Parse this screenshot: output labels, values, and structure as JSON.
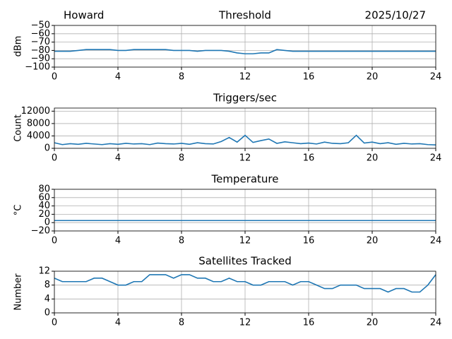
{
  "header": {
    "left": "Howard",
    "right": "2025/10/27"
  },
  "chart_data": [
    {
      "type": "line",
      "title": "Threshold",
      "y_label": "dBm",
      "xlim": [
        0,
        24
      ],
      "xticks": [
        0,
        4,
        8,
        12,
        16,
        20,
        24
      ],
      "ylim": [
        -100,
        -50
      ],
      "yticks": [
        {
          "value": -100,
          "label": "−100"
        },
        {
          "value": -90,
          "label": "−90"
        },
        {
          "value": -80,
          "label": "−80"
        },
        {
          "value": -70,
          "label": "−70"
        },
        {
          "value": -60,
          "label": "−60"
        },
        {
          "value": -50,
          "label": "−50"
        }
      ],
      "grid": true,
      "x": [
        0,
        0.5,
        1,
        1.5,
        2,
        2.5,
        3,
        3.5,
        4,
        4.5,
        5,
        5.5,
        6,
        6.5,
        7,
        7.5,
        8,
        8.5,
        9,
        9.5,
        10,
        10.5,
        11,
        11.5,
        12,
        12.5,
        13,
        13.5,
        14,
        14.5,
        15,
        15.5,
        16,
        16.5,
        17,
        17.5,
        18,
        18.5,
        19,
        19.5,
        20,
        20.5,
        21,
        21.5,
        22,
        22.5,
        23,
        23.5,
        24
      ],
      "series": [
        {
          "color": "#1f77b4",
          "values": [
            -81,
            -81,
            -81,
            -80,
            -79,
            -79,
            -79,
            -79,
            -80,
            -80,
            -79,
            -79,
            -79,
            -79,
            -79,
            -80,
            -80,
            -80,
            -81,
            -80,
            -80,
            -80,
            -81,
            -83,
            -84,
            -84,
            -83,
            -83,
            -79,
            -80,
            -81,
            -81,
            -81,
            -81,
            -81,
            -81,
            -81,
            -81,
            -81,
            -81,
            -81,
            -81,
            -81,
            -81,
            -81,
            -81,
            -81,
            -81,
            -81
          ]
        }
      ]
    },
    {
      "type": "line",
      "title": "Triggers/sec",
      "y_label": "Count",
      "xlim": [
        0,
        24
      ],
      "xticks": [
        0,
        4,
        8,
        12,
        16,
        20,
        24
      ],
      "ylim": [
        0,
        13000
      ],
      "yticks": [
        0,
        4000,
        8000,
        12000
      ],
      "grid": true,
      "x": [
        0,
        0.5,
        1,
        1.5,
        2,
        2.5,
        3,
        3.5,
        4,
        4.5,
        5,
        5.5,
        6,
        6.5,
        7,
        7.5,
        8,
        8.5,
        9,
        9.5,
        10,
        10.5,
        11,
        11.5,
        12,
        12.5,
        13,
        13.5,
        14,
        14.5,
        15,
        15.5,
        16,
        16.5,
        17,
        17.5,
        18,
        18.5,
        19,
        19.5,
        20,
        20.5,
        21,
        21.5,
        22,
        22.5,
        23,
        23.5,
        24
      ],
      "series": [
        {
          "color": "#1f77b4",
          "values": [
            1800,
            1200,
            1500,
            1300,
            1600,
            1400,
            1200,
            1500,
            1300,
            1600,
            1400,
            1500,
            1200,
            1700,
            1500,
            1400,
            1600,
            1300,
            1800,
            1500,
            1400,
            2200,
            3500,
            2000,
            4200,
            1900,
            2500,
            3000,
            1600,
            2100,
            1800,
            1500,
            1700,
            1400,
            2000,
            1600,
            1500,
            1800,
            4200,
            1700,
            2000,
            1500,
            1800,
            1300,
            1600,
            1400,
            1500,
            1200,
            1100
          ]
        }
      ]
    },
    {
      "type": "line",
      "title": "Temperature",
      "y_label": "°C",
      "xlim": [
        0,
        24
      ],
      "xticks": [
        0,
        4,
        8,
        12,
        16,
        20,
        24
      ],
      "ylim": [
        -20,
        80
      ],
      "yticks": [
        {
          "value": -20,
          "label": "−20"
        },
        0,
        20,
        40,
        60,
        80
      ],
      "grid": true,
      "x": [
        0,
        0.5,
        1,
        1.5,
        2,
        2.5,
        3,
        3.5,
        4,
        4.5,
        5,
        5.5,
        6,
        6.5,
        7,
        7.5,
        8,
        8.5,
        9,
        9.5,
        10,
        10.5,
        11,
        11.5,
        12,
        12.5,
        13,
        13.5,
        14,
        14.5,
        15,
        15.5,
        16,
        16.5,
        17,
        17.5,
        18,
        18.5,
        19,
        19.5,
        20,
        20.5,
        21,
        21.5,
        22,
        22.5,
        23,
        23.5,
        24
      ],
      "series": [
        {
          "color": "#1f77b4",
          "values": [
            5,
            5,
            5,
            5,
            5,
            5,
            5,
            5,
            5,
            5,
            5,
            5,
            5,
            5,
            5,
            5,
            5,
            5,
            5,
            5,
            5,
            5,
            5,
            5,
            5,
            5,
            5,
            5,
            5,
            5,
            5,
            5,
            5,
            5,
            5,
            5,
            5,
            5,
            5,
            5,
            5,
            5,
            5,
            5,
            5,
            5,
            5,
            5,
            5
          ]
        }
      ]
    },
    {
      "type": "line",
      "title": "Satellites Tracked",
      "y_label": "Number",
      "xlim": [
        0,
        24
      ],
      "xticks": [
        0,
        4,
        8,
        12,
        16,
        20,
        24
      ],
      "ylim": [
        0,
        12
      ],
      "yticks": [
        0,
        4,
        8,
        12
      ],
      "grid": true,
      "x": [
        0,
        0.5,
        1,
        1.5,
        2,
        2.5,
        3,
        3.5,
        4,
        4.5,
        5,
        5.5,
        6,
        6.5,
        7,
        7.5,
        8,
        8.5,
        9,
        9.5,
        10,
        10.5,
        11,
        11.5,
        12,
        12.5,
        13,
        13.5,
        14,
        14.5,
        15,
        15.5,
        16,
        16.5,
        17,
        17.5,
        18,
        18.5,
        19,
        19.5,
        20,
        20.5,
        21,
        21.5,
        22,
        22.5,
        23,
        23.5,
        24
      ],
      "series": [
        {
          "color": "#1f77b4",
          "values": [
            10,
            9,
            9,
            9,
            9,
            10,
            10,
            9,
            8,
            8,
            9,
            9,
            11,
            11,
            11,
            10,
            11,
            11,
            10,
            10,
            9,
            9,
            10,
            9,
            9,
            8,
            8,
            9,
            9,
            9,
            8,
            9,
            9,
            8,
            7,
            7,
            8,
            8,
            8,
            7,
            7,
            7,
            6,
            7,
            7,
            6,
            6,
            8,
            11
          ]
        }
      ]
    }
  ]
}
